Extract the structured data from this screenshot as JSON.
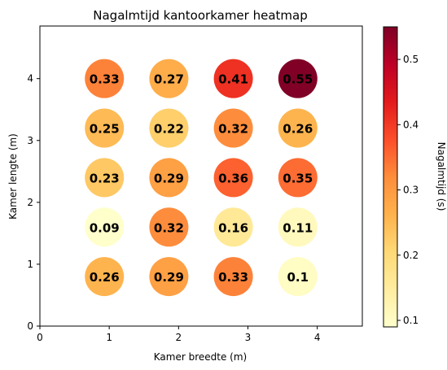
{
  "chart_data": {
    "type": "scatter",
    "title": "Nagalmtijd kantoorkamer heatmap",
    "xlabel": "Kamer breedte (m)",
    "ylabel": "Kamer lengte (m)",
    "colorbar_label": "Nagalmtijd (s)",
    "xlim": [
      0,
      4.65
    ],
    "ylim": [
      0,
      4.85
    ],
    "xticks": [
      0,
      1,
      2,
      3,
      4
    ],
    "yticks": [
      0,
      1,
      2,
      3,
      4
    ],
    "colorbar_range": [
      0.09,
      0.55
    ],
    "colorbar_ticks": [
      0.1,
      0.2,
      0.3,
      0.4,
      0.5
    ],
    "colormap": "YlOrRd",
    "grid": false,
    "points": [
      {
        "x": 0.93,
        "y": 0.8,
        "value": 0.26,
        "label": "0.26"
      },
      {
        "x": 1.86,
        "y": 0.8,
        "value": 0.29,
        "label": "0.29"
      },
      {
        "x": 2.79,
        "y": 0.8,
        "value": 0.33,
        "label": "0.33"
      },
      {
        "x": 3.72,
        "y": 0.8,
        "value": 0.1,
        "label": "0.1"
      },
      {
        "x": 0.93,
        "y": 1.6,
        "value": 0.09,
        "label": "0.09"
      },
      {
        "x": 1.86,
        "y": 1.6,
        "value": 0.32,
        "label": "0.32"
      },
      {
        "x": 2.79,
        "y": 1.6,
        "value": 0.16,
        "label": "0.16"
      },
      {
        "x": 3.72,
        "y": 1.6,
        "value": 0.11,
        "label": "0.11"
      },
      {
        "x": 0.93,
        "y": 2.4,
        "value": 0.23,
        "label": "0.23"
      },
      {
        "x": 1.86,
        "y": 2.4,
        "value": 0.29,
        "label": "0.29"
      },
      {
        "x": 2.79,
        "y": 2.4,
        "value": 0.36,
        "label": "0.36"
      },
      {
        "x": 3.72,
        "y": 2.4,
        "value": 0.35,
        "label": "0.35"
      },
      {
        "x": 0.93,
        "y": 3.2,
        "value": 0.25,
        "label": "0.25"
      },
      {
        "x": 1.86,
        "y": 3.2,
        "value": 0.22,
        "label": "0.22"
      },
      {
        "x": 2.79,
        "y": 3.2,
        "value": 0.32,
        "label": "0.32"
      },
      {
        "x": 3.72,
        "y": 3.2,
        "value": 0.26,
        "label": "0.26"
      },
      {
        "x": 0.93,
        "y": 4.0,
        "value": 0.33,
        "label": "0.33"
      },
      {
        "x": 1.86,
        "y": 4.0,
        "value": 0.27,
        "label": "0.27"
      },
      {
        "x": 2.79,
        "y": 4.0,
        "value": 0.41,
        "label": "0.41"
      },
      {
        "x": 3.72,
        "y": 4.0,
        "value": 0.55,
        "label": "0.55"
      }
    ]
  }
}
